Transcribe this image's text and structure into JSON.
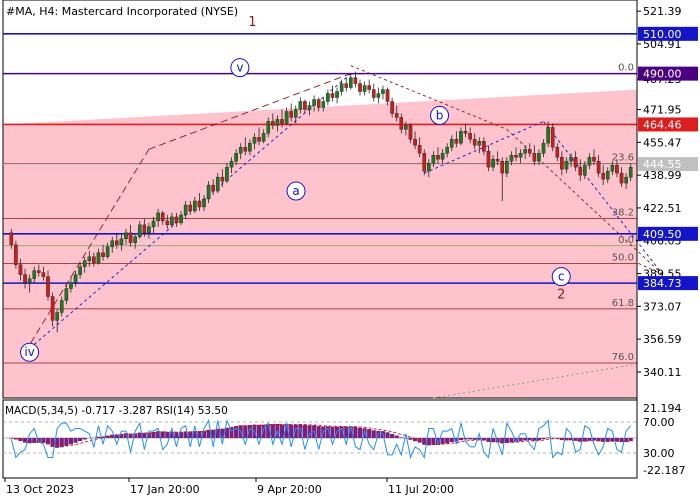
{
  "header": {
    "title": "#MA, H4:  Mastercard Incorporated (NYSE)"
  },
  "chart_data": {
    "type": "candlestick",
    "symbol": "#MA",
    "timeframe": "H4",
    "title": "#MA, H4:  Mastercard Incorporated (NYSE)",
    "price_axis": {
      "tick_labels": [
        "521.39",
        "504.91",
        "487.23",
        "471.95",
        "455.47",
        "438.99",
        "422.51",
        "406.03",
        "389.55",
        "373.07",
        "356.59",
        "340.11"
      ],
      "tick_values": [
        521.39,
        504.91,
        487.23,
        471.95,
        455.47,
        438.99,
        422.51,
        406.03,
        389.55,
        373.07,
        356.59,
        340.11
      ],
      "ylim": [
        327.0,
        527.0
      ]
    },
    "date_axis": {
      "labels": [
        "13 Oct 2023",
        "17 Jan 20:00",
        "9 Apr 20:00",
        "11 Jul 20:00"
      ]
    },
    "levels": [
      {
        "label": "510.00",
        "value": 510.0,
        "color": "#1414c8",
        "badge": true
      },
      {
        "label": "490.00",
        "value": 490.0,
        "color": "#4b0082",
        "badge": true
      },
      {
        "label": "464.46",
        "value": 464.46,
        "color": "#dc1e1e",
        "badge": true
      },
      {
        "label": "444.55",
        "value": 444.55,
        "color": "#c0c0c0",
        "badge": true
      },
      {
        "label": "409.50",
        "value": 409.5,
        "color": "#1414c8",
        "badge": true
      },
      {
        "label": "384.73",
        "value": 384.73,
        "color": "#1414c8",
        "badge": true
      }
    ],
    "fib_levels": [
      {
        "label": "0.0",
        "value": 490.0
      },
      {
        "label": "23.6",
        "value": 444.8
      },
      {
        "label": "38.2",
        "value": 417.2
      },
      {
        "label": "0.0",
        "value": 403.5
      },
      {
        "label": "50.0",
        "value": 394.6
      },
      {
        "label": "61.8",
        "value": 371.8
      },
      {
        "label": "76.0",
        "value": 344.6
      }
    ],
    "wave_labels": [
      {
        "label": "1",
        "role": "major",
        "date_index": 0.39,
        "price": 514
      },
      {
        "label": "v",
        "role": "circle",
        "date_index": 0.37,
        "price": 493
      },
      {
        "label": "b",
        "role": "circle",
        "date_index": 0.69,
        "price": 469
      },
      {
        "label": "a",
        "role": "circle",
        "date_index": 0.46,
        "price": 431
      },
      {
        "label": "c",
        "role": "circle",
        "date_index": 0.885,
        "price": 388
      },
      {
        "label": "2",
        "role": "major",
        "date_index": 0.885,
        "price": 377
      },
      {
        "label": "iv",
        "role": "circle",
        "date_index": 0.033,
        "price": 350
      }
    ],
    "candles": [
      [
        0,
        410,
        412,
        402,
        404
      ],
      [
        1,
        404,
        406,
        392,
        394
      ],
      [
        2,
        394,
        397,
        386,
        389
      ],
      [
        3,
        389,
        392,
        382,
        385
      ],
      [
        4,
        385,
        389,
        380,
        387
      ],
      [
        5,
        387,
        393,
        385,
        391
      ],
      [
        6,
        391,
        394,
        388,
        390
      ],
      [
        7,
        390,
        393,
        386,
        388
      ],
      [
        8,
        388,
        391,
        376,
        378
      ],
      [
        9,
        378,
        380,
        363,
        366
      ],
      [
        10,
        366,
        372,
        360,
        370
      ],
      [
        11,
        370,
        378,
        368,
        376
      ],
      [
        12,
        376,
        384,
        374,
        382
      ],
      [
        13,
        382,
        388,
        380,
        385
      ],
      [
        14,
        385,
        391,
        383,
        389
      ],
      [
        15,
        389,
        395,
        387,
        393
      ],
      [
        16,
        393,
        398,
        390,
        396
      ],
      [
        17,
        396,
        401,
        393,
        398
      ],
      [
        18,
        398,
        400,
        393,
        395
      ],
      [
        19,
        395,
        402,
        394,
        400
      ],
      [
        20,
        400,
        404,
        396,
        398
      ],
      [
        21,
        398,
        405,
        397,
        403
      ],
      [
        22,
        403,
        408,
        400,
        406
      ],
      [
        23,
        406,
        410,
        402,
        404
      ],
      [
        24,
        404,
        409,
        401,
        407
      ],
      [
        25,
        407,
        412,
        404,
        410
      ],
      [
        26,
        410,
        414,
        403,
        405
      ],
      [
        27,
        405,
        409,
        402,
        408
      ],
      [
        28,
        408,
        416,
        407,
        414
      ],
      [
        29,
        414,
        417,
        408,
        410
      ],
      [
        30,
        410,
        415,
        407,
        413
      ],
      [
        31,
        413,
        418,
        410,
        416
      ],
      [
        32,
        416,
        422,
        413,
        420
      ],
      [
        33,
        420,
        421,
        414,
        416
      ],
      [
        34,
        416,
        419,
        412,
        414
      ],
      [
        35,
        414,
        420,
        413,
        418
      ],
      [
        36,
        418,
        420,
        413,
        415
      ],
      [
        37,
        415,
        421,
        414,
        419
      ],
      [
        38,
        419,
        426,
        417,
        424
      ],
      [
        39,
        424,
        426,
        419,
        421
      ],
      [
        40,
        421,
        428,
        420,
        426
      ],
      [
        41,
        426,
        430,
        421,
        423
      ],
      [
        42,
        423,
        429,
        421,
        427
      ],
      [
        43,
        427,
        436,
        425,
        434
      ],
      [
        44,
        434,
        437,
        429,
        431
      ],
      [
        45,
        431,
        440,
        430,
        438
      ],
      [
        46,
        438,
        442,
        433,
        436
      ],
      [
        47,
        436,
        445,
        435,
        443
      ],
      [
        48,
        443,
        448,
        440,
        446
      ],
      [
        49,
        446,
        452,
        444,
        450
      ],
      [
        50,
        450,
        455,
        447,
        453
      ],
      [
        51,
        453,
        458,
        449,
        451
      ],
      [
        52,
        451,
        457,
        449,
        455
      ],
      [
        53,
        455,
        460,
        452,
        458
      ],
      [
        54,
        458,
        463,
        454,
        456
      ],
      [
        55,
        456,
        462,
        455,
        460
      ],
      [
        56,
        460,
        468,
        458,
        466
      ],
      [
        57,
        466,
        470,
        462,
        464
      ],
      [
        58,
        464,
        469,
        461,
        467
      ],
      [
        59,
        467,
        472,
        463,
        465
      ],
      [
        60,
        465,
        473,
        464,
        471
      ],
      [
        61,
        471,
        475,
        466,
        468
      ],
      [
        62,
        468,
        474,
        465,
        472
      ],
      [
        63,
        472,
        478,
        470,
        476
      ],
      [
        64,
        476,
        477,
        470,
        472
      ],
      [
        65,
        472,
        476,
        469,
        474
      ],
      [
        66,
        474,
        479,
        471,
        477
      ],
      [
        67,
        477,
        478,
        471,
        473
      ],
      [
        68,
        473,
        478,
        471,
        476
      ],
      [
        69,
        476,
        482,
        474,
        480
      ],
      [
        70,
        480,
        484,
        476,
        478
      ],
      [
        71,
        478,
        483,
        475,
        481
      ],
      [
        72,
        481,
        487,
        479,
        485
      ],
      [
        73,
        485,
        488,
        481,
        483
      ],
      [
        74,
        483,
        490,
        482,
        488
      ],
      [
        75,
        488,
        491,
        483,
        485
      ],
      [
        76,
        485,
        487,
        479,
        481
      ],
      [
        77,
        481,
        486,
        479,
        484
      ],
      [
        78,
        484,
        487,
        480,
        482
      ],
      [
        79,
        482,
        485,
        476,
        478
      ],
      [
        80,
        478,
        483,
        475,
        480
      ],
      [
        81,
        480,
        484,
        477,
        482
      ],
      [
        82,
        482,
        483,
        474,
        476
      ],
      [
        83,
        476,
        478,
        468,
        470
      ],
      [
        84,
        470,
        474,
        466,
        468
      ],
      [
        85,
        468,
        470,
        460,
        462
      ],
      [
        86,
        462,
        466,
        459,
        464
      ],
      [
        87,
        464,
        465,
        455,
        457
      ],
      [
        88,
        457,
        461,
        452,
        454
      ],
      [
        89,
        454,
        458,
        448,
        450
      ],
      [
        90,
        450,
        452,
        439,
        441
      ],
      [
        91,
        441,
        447,
        438,
        445
      ],
      [
        92,
        445,
        451,
        443,
        449
      ],
      [
        93,
        449,
        453,
        445,
        447
      ],
      [
        94,
        447,
        452,
        445,
        450
      ],
      [
        95,
        450,
        455,
        448,
        453
      ],
      [
        96,
        453,
        459,
        451,
        457
      ],
      [
        97,
        457,
        461,
        453,
        455
      ],
      [
        98,
        455,
        463,
        454,
        461
      ],
      [
        99,
        461,
        465,
        458,
        460
      ],
      [
        100,
        460,
        463,
        455,
        457
      ],
      [
        101,
        457,
        460,
        452,
        454
      ],
      [
        102,
        454,
        458,
        450,
        456
      ],
      [
        103,
        456,
        458,
        449,
        451
      ],
      [
        104,
        451,
        454,
        441,
        443
      ],
      [
        105,
        443,
        449,
        441,
        447
      ],
      [
        106,
        447,
        451,
        444,
        446
      ],
      [
        107,
        446,
        448,
        426,
        440
      ],
      [
        108,
        440,
        448,
        438,
        446
      ],
      [
        109,
        446,
        451,
        444,
        449
      ],
      [
        110,
        449,
        453,
        446,
        448
      ],
      [
        111,
        448,
        452,
        445,
        450
      ],
      [
        112,
        450,
        454,
        447,
        452
      ],
      [
        113,
        452,
        455,
        448,
        450
      ],
      [
        114,
        450,
        454,
        444,
        446
      ],
      [
        115,
        446,
        452,
        444,
        450
      ],
      [
        116,
        450,
        457,
        448,
        455
      ],
      [
        117,
        455,
        466,
        453,
        463
      ],
      [
        118,
        463,
        465,
        451,
        453
      ],
      [
        119,
        453,
        455,
        446,
        448
      ],
      [
        120,
        448,
        451,
        439,
        442
      ],
      [
        121,
        442,
        448,
        440,
        446
      ],
      [
        122,
        446,
        450,
        443,
        448
      ],
      [
        123,
        448,
        451,
        441,
        443
      ],
      [
        124,
        443,
        447,
        436,
        439
      ],
      [
        125,
        439,
        446,
        437,
        444
      ],
      [
        126,
        444,
        450,
        442,
        448
      ],
      [
        127,
        448,
        452,
        444,
        446
      ],
      [
        128,
        446,
        449,
        438,
        440
      ],
      [
        129,
        440,
        444,
        434,
        437
      ],
      [
        130,
        437,
        443,
        435,
        441
      ],
      [
        131,
        441,
        446,
        439,
        444
      ],
      [
        132,
        444,
        447,
        438,
        440
      ],
      [
        133,
        440,
        443,
        433,
        435
      ],
      [
        134,
        435,
        440,
        432,
        438
      ],
      [
        135,
        438,
        445,
        436,
        443
      ]
    ],
    "macd_panel": {
      "label": "MACD(5,34,5) -0.717 -3.287 RSI(14) 53.50",
      "tick_labels": [
        "21.194",
        "70.00",
        "30.00",
        "-22.187"
      ]
    }
  }
}
